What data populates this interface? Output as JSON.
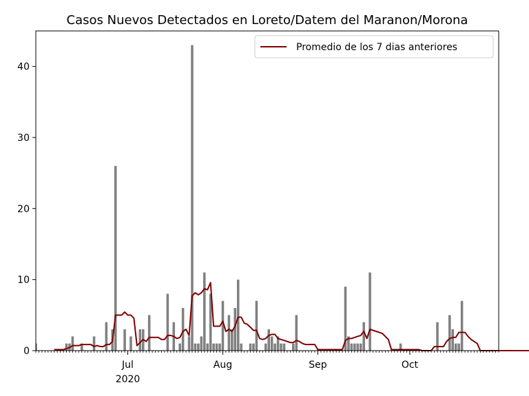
{
  "chart_data": {
    "type": "bar",
    "title": "Casos Nuevos Detectados en Loreto/Datem del Maranon/Morona",
    "xlabel": "",
    "ylabel": "",
    "x_start": "2020-06-01",
    "xlim": [
      "2020-06-01",
      "2020-10-30"
    ],
    "ylim": [
      0,
      45
    ],
    "y_ticks": [
      0,
      10,
      20,
      30,
      40
    ],
    "x_ticks": [
      {
        "date": "2020-07-01",
        "label": "Jul",
        "sublabel": "2020"
      },
      {
        "date": "2020-08-01",
        "label": "Aug",
        "sublabel": ""
      },
      {
        "date": "2020-09-01",
        "label": "Sep",
        "sublabel": ""
      },
      {
        "date": "2020-10-01",
        "label": "Oct",
        "sublabel": ""
      }
    ],
    "grid": false,
    "legend_position": "top-right",
    "bar_color": "#808080",
    "line_color": "#800000",
    "series": [
      {
        "type": "bar",
        "values": [
          1,
          0,
          0,
          0,
          0,
          0,
          0,
          0,
          0,
          0,
          1,
          1,
          2,
          0,
          0,
          1,
          0,
          0,
          0,
          2,
          0,
          0,
          0,
          4,
          0,
          3,
          26,
          0,
          0,
          3,
          0,
          2,
          0,
          0,
          3,
          3,
          0,
          5,
          0,
          0,
          0,
          0,
          0,
          8,
          0,
          4,
          0,
          1,
          6,
          0,
          2,
          43,
          1,
          1,
          2,
          11,
          1,
          8,
          1,
          1,
          1,
          7,
          0,
          5,
          3,
          6,
          10,
          1,
          0,
          0,
          1,
          1,
          7,
          0,
          0,
          1,
          3,
          2,
          1,
          2,
          1,
          1,
          0,
          0,
          1,
          5,
          0,
          0,
          0,
          0,
          0,
          0,
          0,
          0,
          0,
          0,
          0,
          0,
          0,
          0,
          0,
          9,
          2,
          1,
          1,
          1,
          1,
          4,
          0,
          11,
          0,
          0,
          0,
          0,
          0,
          0,
          0,
          0,
          0,
          1,
          0,
          0,
          0,
          0,
          0,
          0,
          0,
          0,
          0,
          0,
          0,
          4,
          0,
          0,
          0,
          5,
          3,
          1,
          1,
          7,
          0,
          0,
          0,
          0,
          0,
          0,
          0,
          0,
          0,
          0,
          0,
          0,
          0,
          0,
          0,
          0,
          0,
          0,
          0,
          0,
          0,
          0,
          0,
          0,
          0,
          0,
          0,
          0,
          0,
          0,
          0,
          0,
          0,
          0,
          0,
          0,
          0,
          0,
          0,
          1
        ]
      },
      {
        "type": "line",
        "name": "Promedio de los 7 dias anteriores",
        "values": [
          null,
          null,
          null,
          null,
          null,
          null,
          0.14,
          0.14,
          0.14,
          0.14,
          0.29,
          0.43,
          0.71,
          0.71,
          0.71,
          0.86,
          0.86,
          0.86,
          0.86,
          0.57,
          0.71,
          0.57,
          0.57,
          0.86,
          0.86,
          1.29,
          5.0,
          5.0,
          5.0,
          5.43,
          5.0,
          5.0,
          4.57,
          0.71,
          1.14,
          1.57,
          1.29,
          1.86,
          1.86,
          1.86,
          1.86,
          1.57,
          1.57,
          2.14,
          2.14,
          2.0,
          1.71,
          1.86,
          2.71,
          3.0,
          2.14,
          7.71,
          8.14,
          7.86,
          8.14,
          8.71,
          8.57,
          9.57,
          3.43,
          3.43,
          3.43,
          4.14,
          2.71,
          3.0,
          2.71,
          3.43,
          4.71,
          4.71,
          3.86,
          3.71,
          3.29,
          2.86,
          2.86,
          1.71,
          1.57,
          1.71,
          2.14,
          2.29,
          2.29,
          1.71,
          1.57,
          1.43,
          1.29,
          1.14,
          1.14,
          1.43,
          1.29,
          1.0,
          0.86,
          0.86,
          0.86,
          0.86,
          0.14,
          0.14,
          0.14,
          0.14,
          0.14,
          0.14,
          0.14,
          0.14,
          0.14,
          1.43,
          1.71,
          1.71,
          1.86,
          2.0,
          2.14,
          2.71,
          1.71,
          3.0,
          2.86,
          2.71,
          2.57,
          2.43,
          2.0,
          1.57,
          0.14,
          0.14,
          0.14,
          0.14,
          0.14,
          0.14,
          0.14,
          0.14,
          0.14,
          0.14,
          0.0,
          0.0,
          0.0,
          0.0,
          0.57,
          0.57,
          0.57,
          0.57,
          1.29,
          1.71,
          1.86,
          1.86,
          2.57,
          2.57,
          2.57,
          2.0,
          1.57,
          1.29,
          1.0,
          0.0,
          0.0,
          0.0,
          0.0,
          0.0,
          0.0,
          0.0,
          0.0,
          0.0,
          0.0,
          0.0,
          0.0,
          0.0,
          0.0,
          0.0,
          0.0,
          0.0,
          0.0,
          0.0,
          0.0,
          0.0,
          0.0,
          0.0,
          0.0,
          0.0,
          0.0,
          0.0,
          0.0,
          0.0,
          0.0,
          0.0,
          0.0,
          0.14
        ]
      }
    ]
  }
}
